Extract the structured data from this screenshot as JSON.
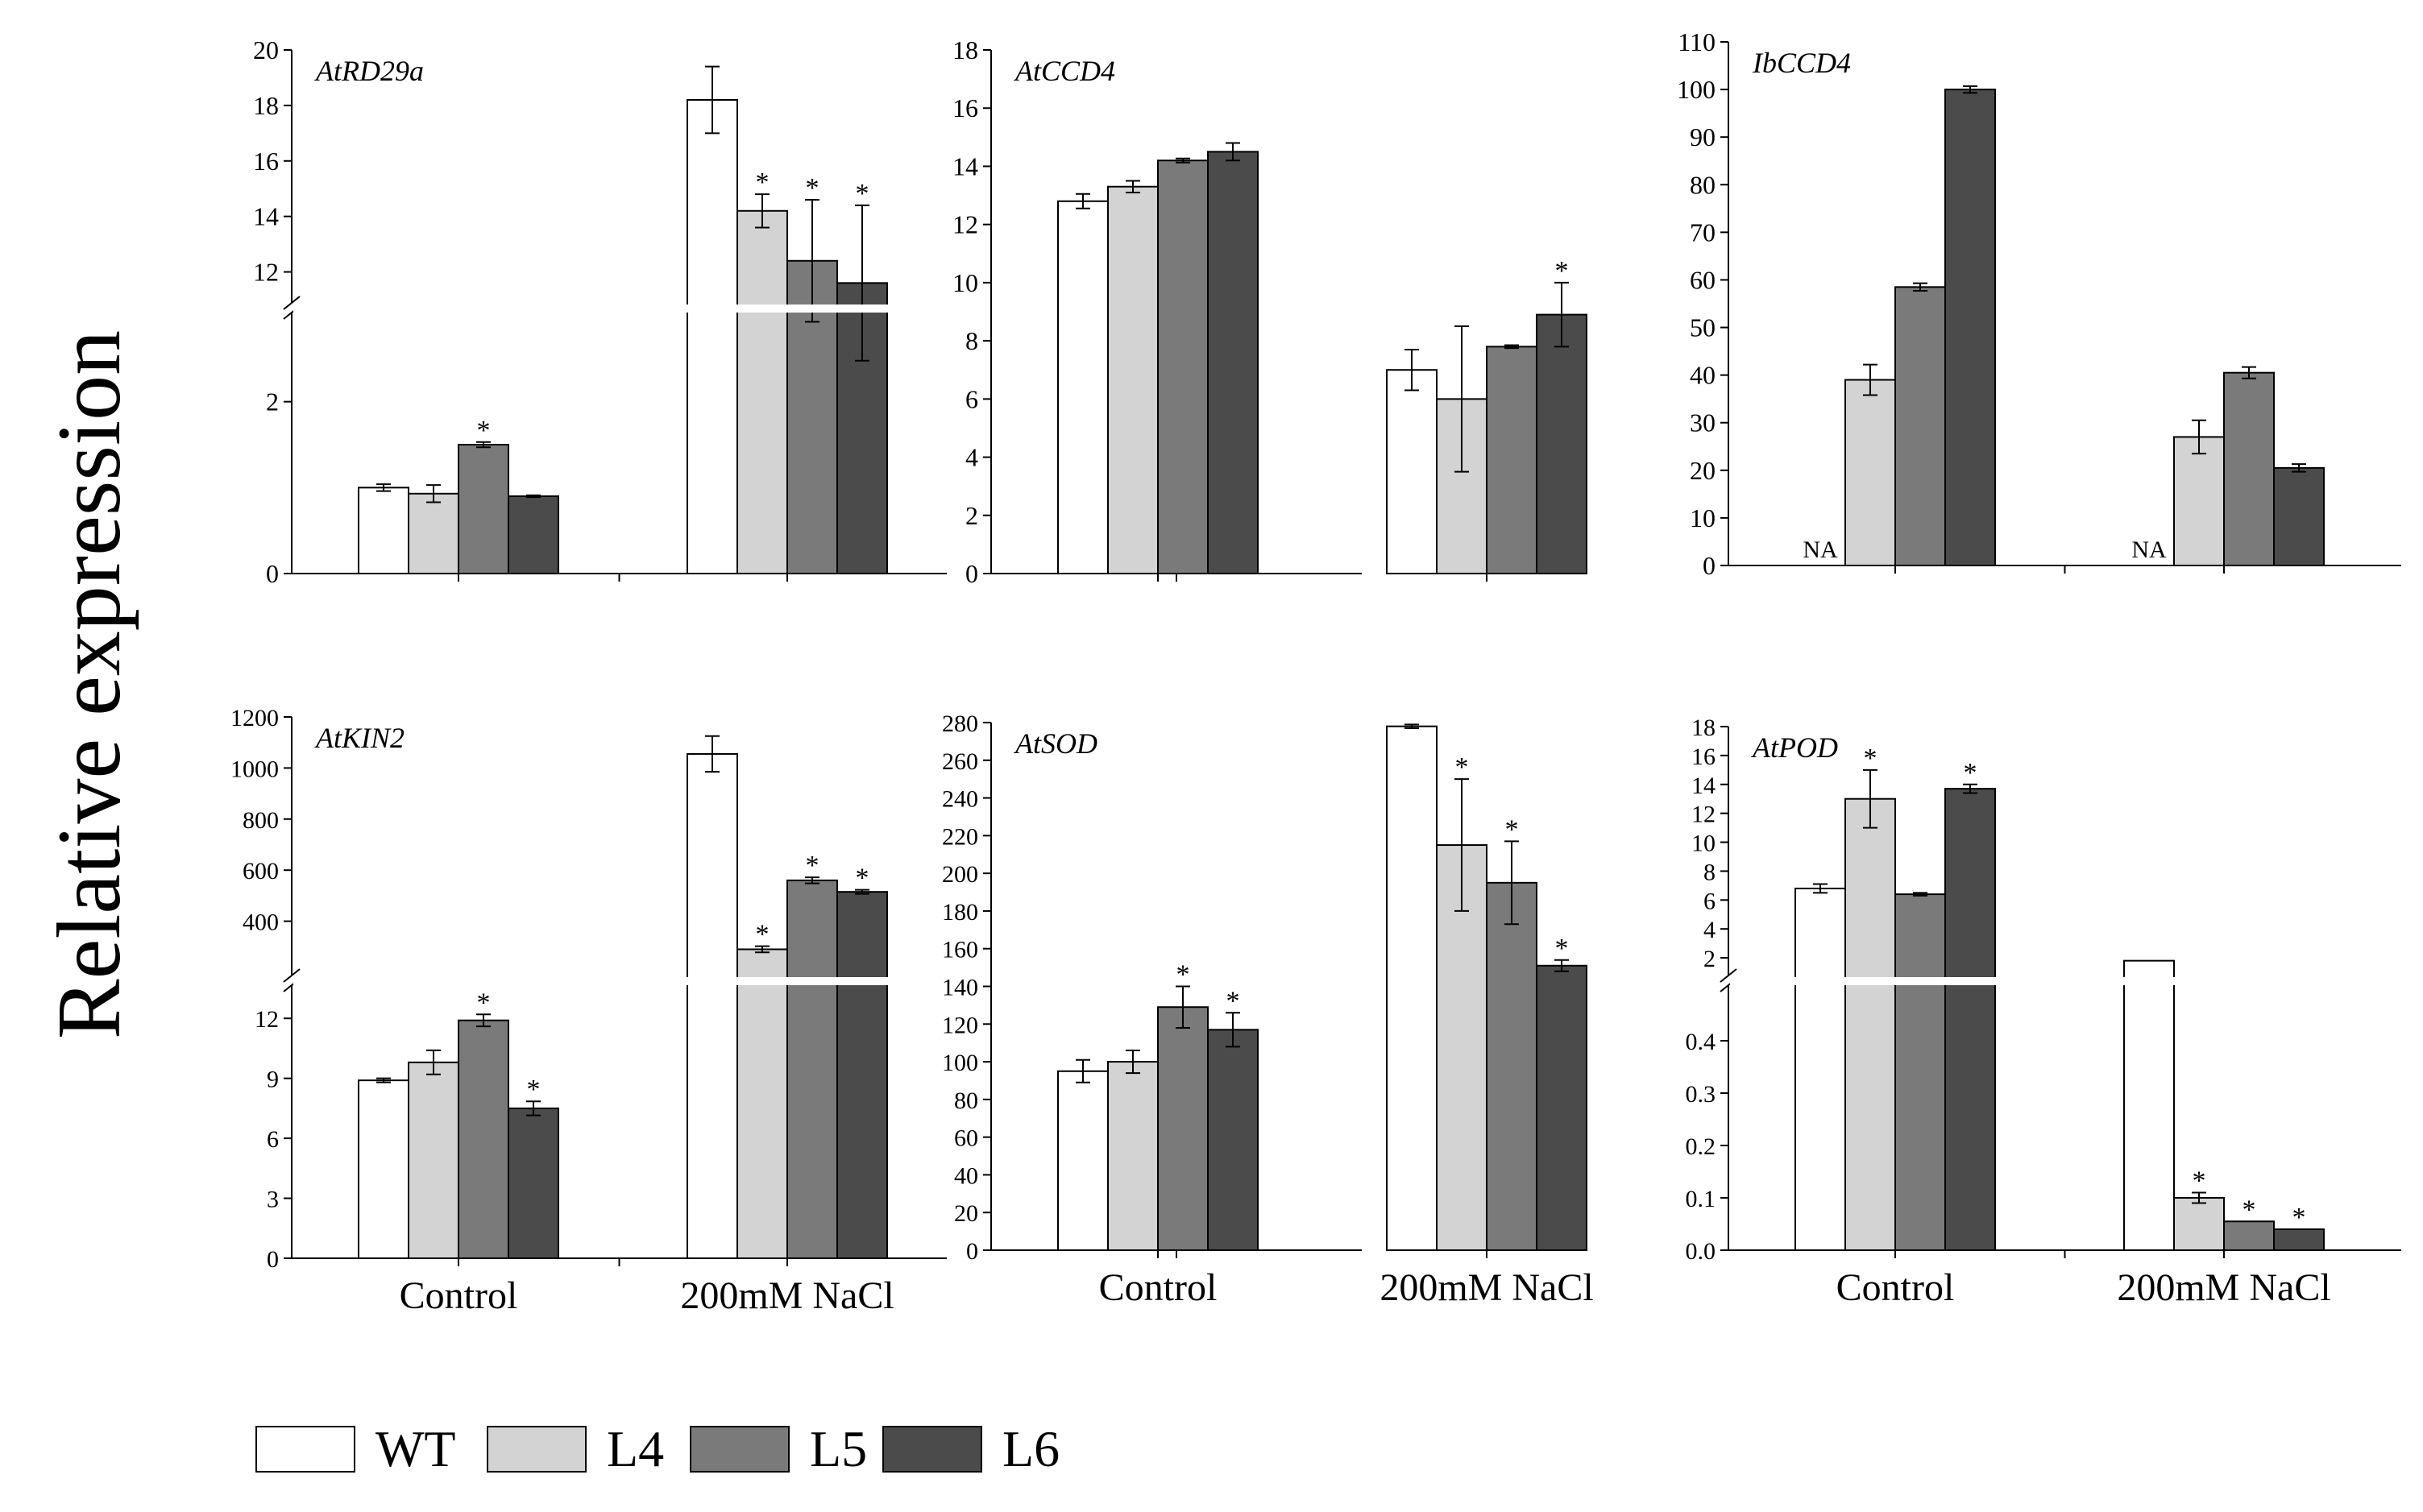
{
  "figure": {
    "ylabel": "Relative expression",
    "colors": {
      "WT": "#ffffff",
      "L4": "#d3d3d3",
      "L5": "#7a7a7a",
      "L6": "#4b4b4b"
    },
    "legend": [
      "WT",
      "L4",
      "L5",
      "L6"
    ]
  },
  "chart_data": [
    {
      "type": "bar",
      "title": "AtRD29a",
      "xlabel": "",
      "ylabel": "Relative expression",
      "categories": [
        "Control",
        "200mM NaCl"
      ],
      "show_categories": false,
      "break": {
        "lower": [
          0,
          3
        ],
        "upper": [
          11,
          20
        ]
      },
      "lower_ticks": [
        0,
        2
      ],
      "upper_ticks": [
        12,
        14,
        16,
        18,
        20
      ],
      "series": [
        {
          "name": "WT",
          "values": [
            1.0,
            18.2
          ],
          "errors": [
            0.04,
            1.2
          ],
          "sig": [
            false,
            false
          ]
        },
        {
          "name": "L4",
          "values": [
            0.93,
            14.2
          ],
          "errors": [
            0.1,
            0.6
          ],
          "sig": [
            false,
            true
          ]
        },
        {
          "name": "L5",
          "values": [
            1.5,
            12.4
          ],
          "errors": [
            0.03,
            2.2
          ],
          "sig": [
            true,
            true
          ]
        },
        {
          "name": "L6",
          "values": [
            0.9,
            11.6
          ],
          "errors": [
            0.01,
            2.8
          ],
          "sig": [
            false,
            true
          ]
        }
      ]
    },
    {
      "type": "bar",
      "title": "AtCCD4",
      "xlabel": "",
      "ylabel": "Relative expression",
      "categories": [
        "Control",
        "200mM NaCl"
      ],
      "show_categories": false,
      "ylim": [
        0,
        18
      ],
      "ticks": [
        0,
        2,
        4,
        6,
        8,
        10,
        12,
        14,
        16,
        18
      ],
      "series": [
        {
          "name": "WT",
          "values": [
            12.8,
            7.0
          ],
          "errors": [
            0.25,
            0.7
          ],
          "sig": [
            false,
            false
          ]
        },
        {
          "name": "L4",
          "values": [
            13.3,
            6.0
          ],
          "errors": [
            0.2,
            2.5
          ],
          "sig": [
            false,
            false
          ]
        },
        {
          "name": "L5",
          "values": [
            14.2,
            7.8
          ],
          "errors": [
            0.07,
            0.05
          ],
          "sig": [
            false,
            false
          ]
        },
        {
          "name": "L6",
          "values": [
            14.5,
            8.9
          ],
          "errors": [
            0.3,
            1.1
          ],
          "sig": [
            false,
            true
          ]
        }
      ]
    },
    {
      "type": "bar",
      "title": "IbCCD4",
      "xlabel": "",
      "ylabel": "Relative expression",
      "categories": [
        "Control",
        "200mM NaCl"
      ],
      "show_categories": false,
      "ylim": [
        0,
        110
      ],
      "ticks": [
        0,
        10,
        20,
        30,
        40,
        50,
        60,
        70,
        80,
        90,
        100,
        110
      ],
      "na_label": "NA",
      "series": [
        {
          "name": "WT",
          "values": [
            null,
            null
          ],
          "errors": [
            0,
            0
          ],
          "sig": [
            false,
            false
          ]
        },
        {
          "name": "L4",
          "values": [
            39,
            27
          ],
          "errors": [
            3.2,
            3.5
          ],
          "sig": [
            false,
            false
          ]
        },
        {
          "name": "L5",
          "values": [
            58.5,
            40.5
          ],
          "errors": [
            0.8,
            1.2
          ],
          "sig": [
            false,
            false
          ]
        },
        {
          "name": "L6",
          "values": [
            100,
            20.5
          ],
          "errors": [
            0.7,
            0.8
          ],
          "sig": [
            false,
            false
          ]
        }
      ]
    },
    {
      "type": "bar",
      "title": "AtKIN2",
      "xlabel": "",
      "ylabel": "Relative expression",
      "categories": [
        "Control",
        "200mM NaCl"
      ],
      "show_categories": true,
      "break": {
        "lower": [
          0,
          13.5
        ],
        "upper": [
          200,
          1200
        ]
      },
      "lower_ticks": [
        0,
        3,
        6,
        9,
        12
      ],
      "upper_ticks": [
        400,
        600,
        800,
        1000,
        1200
      ],
      "series": [
        {
          "name": "WT",
          "values": [
            8.9,
            1055
          ],
          "errors": [
            0.1,
            70
          ],
          "sig": [
            false,
            false
          ]
        },
        {
          "name": "L4",
          "values": [
            9.8,
            290
          ],
          "errors": [
            0.6,
            12
          ],
          "sig": [
            false,
            true
          ]
        },
        {
          "name": "L5",
          "values": [
            11.9,
            560
          ],
          "errors": [
            0.3,
            12
          ],
          "sig": [
            true,
            true
          ]
        },
        {
          "name": "L6",
          "values": [
            7.5,
            515
          ],
          "errors": [
            0.35,
            8
          ],
          "sig": [
            true,
            true
          ]
        }
      ]
    },
    {
      "type": "bar",
      "title": "AtSOD",
      "xlabel": "",
      "ylabel": "Relative expression",
      "categories": [
        "Control",
        "200mM NaCl"
      ],
      "show_categories": true,
      "ylim": [
        0,
        280
      ],
      "ticks": [
        0,
        20,
        40,
        60,
        80,
        100,
        120,
        140,
        160,
        180,
        200,
        220,
        240,
        260,
        280
      ],
      "series": [
        {
          "name": "WT",
          "values": [
            95,
            278
          ],
          "errors": [
            6,
            1
          ],
          "sig": [
            false,
            false
          ]
        },
        {
          "name": "L4",
          "values": [
            100,
            215
          ],
          "errors": [
            6,
            35
          ],
          "sig": [
            false,
            true
          ]
        },
        {
          "name": "L5",
          "values": [
            129,
            195
          ],
          "errors": [
            11,
            22
          ],
          "sig": [
            true,
            true
          ]
        },
        {
          "name": "L6",
          "values": [
            117,
            151
          ],
          "errors": [
            9,
            3
          ],
          "sig": [
            true,
            true
          ]
        }
      ]
    },
    {
      "type": "bar",
      "title": "AtPOD",
      "xlabel": "",
      "ylabel": "Relative expression",
      "categories": [
        "Control",
        "200mM NaCl"
      ],
      "show_categories": true,
      "break": {
        "lower": [
          0,
          0.5
        ],
        "upper": [
          1,
          18
        ]
      },
      "lower_ticks": [
        0.0,
        0.1,
        0.2,
        0.3,
        0.4
      ],
      "upper_ticks": [
        2,
        4,
        6,
        8,
        10,
        12,
        14,
        16,
        18
      ],
      "lower_tick_labels": [
        "0.0",
        "0.1",
        "0.2",
        "0.3",
        "0.4"
      ],
      "series": [
        {
          "name": "WT",
          "values": [
            6.8,
            1.8
          ],
          "errors": [
            0.3,
            0
          ],
          "sig": [
            false,
            false
          ]
        },
        {
          "name": "L4",
          "values": [
            13.0,
            0.1
          ],
          "errors": [
            2.0,
            0.01
          ],
          "sig": [
            true,
            true
          ]
        },
        {
          "name": "L5",
          "values": [
            6.4,
            0.055
          ],
          "errors": [
            0.1,
            0
          ],
          "sig": [
            false,
            true
          ]
        },
        {
          "name": "L6",
          "values": [
            13.7,
            0.04
          ],
          "errors": [
            0.3,
            0
          ],
          "sig": [
            true,
            true
          ]
        }
      ]
    }
  ]
}
